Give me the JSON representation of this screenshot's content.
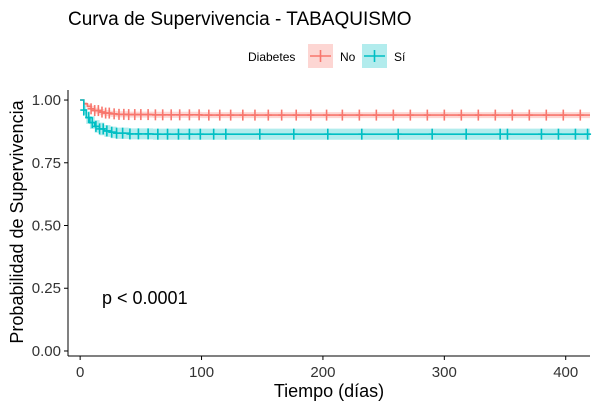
{
  "chart_data": {
    "type": "line",
    "title": "Curva de Supervivencia - TABAQUISMO",
    "xlabel": "Tiempo (días)",
    "ylabel": "Probabilidad de Supervivencia",
    "xlim": [
      -10,
      420
    ],
    "ylim": [
      -0.02,
      1.04
    ],
    "x_ticks": [
      0,
      100,
      200,
      300,
      400
    ],
    "y_ticks": [
      0.0,
      0.25,
      0.5,
      0.75,
      1.0
    ],
    "y_tick_labels": [
      "0.00",
      "0.25",
      "0.50",
      "0.75",
      "1.00"
    ],
    "grid": false,
    "legend": {
      "title": "Diabetes",
      "position": "top"
    },
    "annotation": "p < 0.0001",
    "series": [
      {
        "name": "No",
        "color": "#F8766D",
        "x": [
          0,
          3,
          6,
          9,
          12,
          16,
          20,
          25,
          30,
          40,
          60,
          100,
          200,
          300,
          420
        ],
        "y": [
          1.0,
          0.985,
          0.975,
          0.965,
          0.958,
          0.952,
          0.948,
          0.945,
          0.943,
          0.942,
          0.941,
          0.94,
          0.94,
          0.94,
          0.94
        ],
        "ci_upper": [
          1.0,
          0.992,
          0.985,
          0.977,
          0.97,
          0.964,
          0.96,
          0.957,
          0.955,
          0.954,
          0.953,
          0.952,
          0.952,
          0.952,
          0.952
        ],
        "ci_lower": [
          1.0,
          0.978,
          0.966,
          0.954,
          0.946,
          0.94,
          0.936,
          0.933,
          0.931,
          0.93,
          0.929,
          0.928,
          0.928,
          0.928,
          0.928
        ]
      },
      {
        "name": "Sí",
        "color": "#00BFC4",
        "x": [
          0,
          3,
          5,
          8,
          12,
          16,
          20,
          25,
          30,
          40,
          60,
          100,
          200,
          300,
          420
        ],
        "y": [
          1.0,
          0.96,
          0.93,
          0.91,
          0.895,
          0.885,
          0.877,
          0.872,
          0.868,
          0.865,
          0.864,
          0.864,
          0.864,
          0.864,
          0.864
        ],
        "ci_upper": [
          1.0,
          0.978,
          0.955,
          0.935,
          0.92,
          0.91,
          0.9,
          0.894,
          0.89,
          0.887,
          0.886,
          0.886,
          0.886,
          0.886,
          0.886
        ],
        "ci_lower": [
          1.0,
          0.942,
          0.905,
          0.885,
          0.87,
          0.86,
          0.853,
          0.848,
          0.845,
          0.843,
          0.842,
          0.842,
          0.842,
          0.842,
          0.842
        ]
      }
    ],
    "censor_ticks": {
      "No": [
        9,
        12,
        15,
        18,
        21,
        24,
        28,
        32,
        36,
        40,
        45,
        50,
        56,
        62,
        68,
        75,
        82,
        90,
        98,
        106,
        115,
        124,
        134,
        144,
        155,
        166,
        178,
        190,
        203,
        216,
        230,
        244,
        258,
        272,
        286,
        300,
        314,
        328,
        342,
        356,
        370,
        384,
        398,
        412
      ],
      "Sí": [
        3,
        7,
        10,
        13,
        16,
        19,
        22,
        26,
        30,
        35,
        41,
        48,
        56,
        64,
        72,
        81,
        90,
        99,
        110,
        120,
        148,
        176,
        204,
        232,
        262,
        290,
        318,
        346,
        352,
        380,
        394,
        408,
        418
      ]
    }
  }
}
